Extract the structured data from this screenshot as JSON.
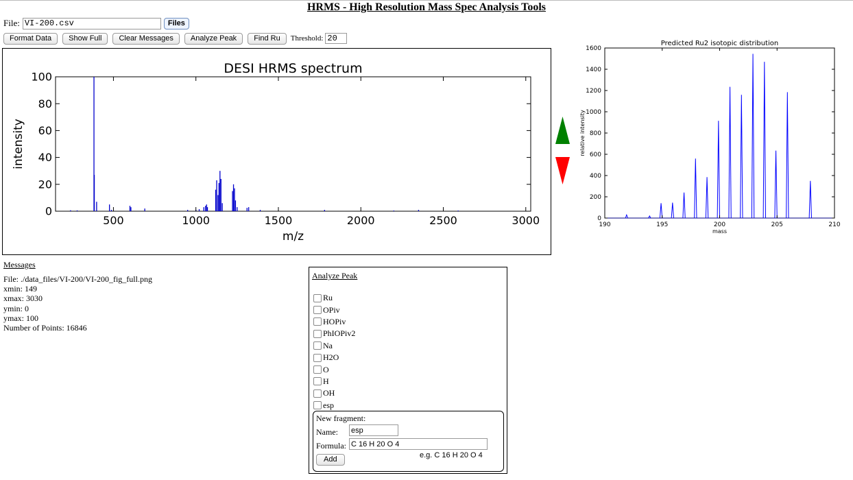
{
  "page_title": "HRMS - High Resolution Mass Spec Analysis Tools",
  "file": {
    "label": "File:",
    "value": "VI-200.csv",
    "files_button": "Files"
  },
  "toolbar": {
    "buttons": [
      "Format Data",
      "Show Full",
      "Clear Messages",
      "Analyze Peak",
      "Find Ru"
    ],
    "threshold_label": "Threshold:",
    "threshold_value": "20"
  },
  "arrows": {
    "up_color": "#008000",
    "down_color": "#ff0000"
  },
  "messages": {
    "title": "Messages",
    "lines": [
      "File: ./data_files/VI-200/VI-200_fig_full.png",
      "xmin: 149",
      "xmax: 3030",
      "ymin: 0",
      "ymax: 100",
      "Number of Points: 16846"
    ]
  },
  "analyze_peak": {
    "title": "Analyze Peak",
    "fragments": [
      "Ru",
      "OPiv",
      "HOPiv",
      "PhIOPiv2",
      "Na",
      "H2O",
      "O",
      "H",
      "OH",
      "esp"
    ],
    "new_fragment": {
      "title": "New fragment:",
      "name_label": "Name:",
      "name_value": "esp",
      "formula_label": "Formula:",
      "formula_value": "C 16 H 20 O 4",
      "example": "e.g. C 16 H 20 O 4",
      "add_button": "Add"
    }
  },
  "chart_data": [
    {
      "type": "line",
      "title": "DESI HRMS spectrum",
      "xlabel": "m/z",
      "ylabel": "intensity",
      "xlim": [
        149,
        3030
      ],
      "ylim": [
        0,
        100
      ],
      "xticks": [
        500,
        1000,
        1500,
        2000,
        2500,
        3000
      ],
      "yticks": [
        0,
        20,
        40,
        60,
        80,
        100
      ],
      "color": "#0000cc",
      "peaks": [
        {
          "x": 240,
          "y": 0.7
        },
        {
          "x": 280,
          "y": 0.6
        },
        {
          "x": 382,
          "y": 100
        },
        {
          "x": 384,
          "y": 27
        },
        {
          "x": 398,
          "y": 7
        },
        {
          "x": 476,
          "y": 5
        },
        {
          "x": 488,
          "y": 1
        },
        {
          "x": 600,
          "y": 4
        },
        {
          "x": 606,
          "y": 3
        },
        {
          "x": 690,
          "y": 2
        },
        {
          "x": 950,
          "y": 1
        },
        {
          "x": 1000,
          "y": 1
        },
        {
          "x": 1020,
          "y": 1.5
        },
        {
          "x": 1048,
          "y": 3
        },
        {
          "x": 1058,
          "y": 4
        },
        {
          "x": 1065,
          "y": 5
        },
        {
          "x": 1070,
          "y": 3
        },
        {
          "x": 1120,
          "y": 16
        },
        {
          "x": 1126,
          "y": 23
        },
        {
          "x": 1134,
          "y": 12
        },
        {
          "x": 1140,
          "y": 21
        },
        {
          "x": 1146,
          "y": 30
        },
        {
          "x": 1152,
          "y": 24
        },
        {
          "x": 1160,
          "y": 6
        },
        {
          "x": 1222,
          "y": 15
        },
        {
          "x": 1228,
          "y": 20
        },
        {
          "x": 1234,
          "y": 17
        },
        {
          "x": 1240,
          "y": 8
        },
        {
          "x": 1250,
          "y": 3
        },
        {
          "x": 1310,
          "y": 2.5
        },
        {
          "x": 1320,
          "y": 3
        },
        {
          "x": 1390,
          "y": 1
        },
        {
          "x": 1780,
          "y": 1
        },
        {
          "x": 2200,
          "y": 0.5
        },
        {
          "x": 2350,
          "y": 1
        },
        {
          "x": 2590,
          "y": 0.5
        }
      ]
    },
    {
      "type": "line",
      "title": "Predicted Ru2 isotopic distribution",
      "xlabel": "mass",
      "ylabel": "relative intensity",
      "xlim": [
        190,
        210
      ],
      "ylim": [
        0,
        1600
      ],
      "xticks": [
        190,
        195,
        200,
        205,
        210
      ],
      "yticks": [
        0,
        200,
        400,
        600,
        800,
        1000,
        1200,
        1400,
        1600
      ],
      "color": "#0000ff",
      "peaks": [
        {
          "x": 191.9,
          "y": 30
        },
        {
          "x": 193.9,
          "y": 20
        },
        {
          "x": 194.9,
          "y": 140
        },
        {
          "x": 195.9,
          "y": 145
        },
        {
          "x": 196.9,
          "y": 240
        },
        {
          "x": 197.9,
          "y": 560
        },
        {
          "x": 198.9,
          "y": 385
        },
        {
          "x": 199.9,
          "y": 915
        },
        {
          "x": 200.9,
          "y": 1235
        },
        {
          "x": 201.9,
          "y": 1160
        },
        {
          "x": 202.9,
          "y": 1545
        },
        {
          "x": 203.9,
          "y": 1470
        },
        {
          "x": 204.9,
          "y": 635
        },
        {
          "x": 205.9,
          "y": 1185
        },
        {
          "x": 207.9,
          "y": 350
        }
      ]
    }
  ]
}
